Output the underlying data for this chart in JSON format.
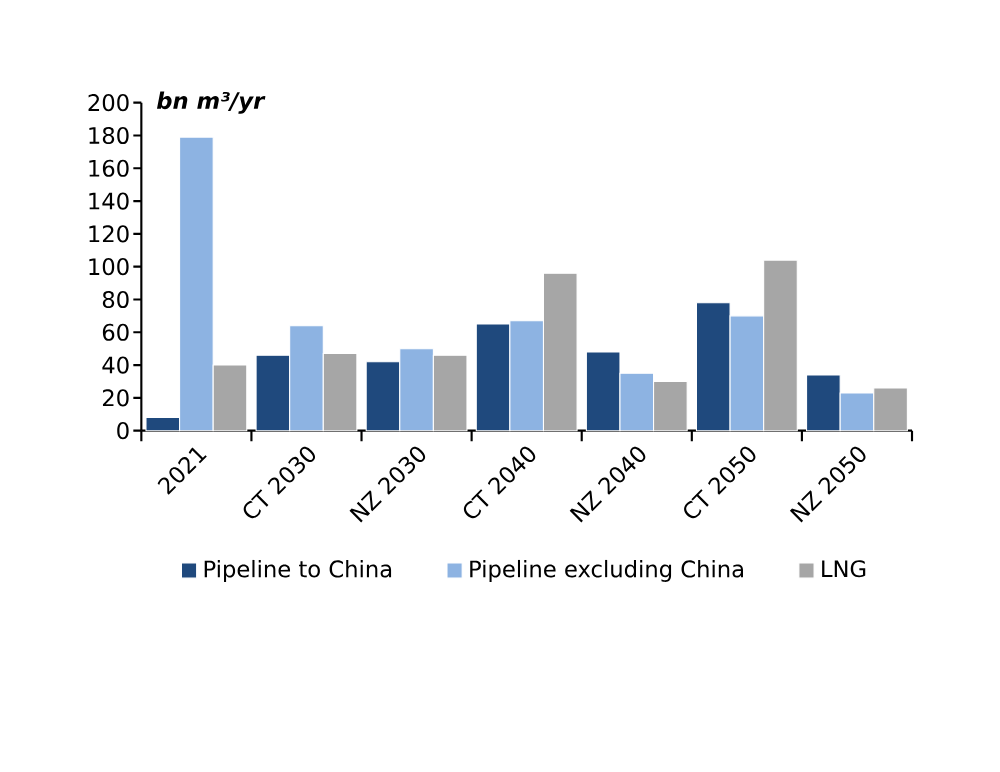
{
  "chart_data": {
    "type": "bar",
    "ylabel": "bn m³/yr",
    "categories": [
      "2021",
      "CT 2030",
      "NZ 2030",
      "CT 2040",
      "NZ 2040",
      "CT 2050",
      "NZ 2050"
    ],
    "series": [
      {
        "name": "Pipeline to China",
        "color": "#1f497d",
        "values": [
          8,
          46,
          42,
          65,
          48,
          78,
          34
        ]
      },
      {
        "name": "Pipeline excluding China",
        "color": "#8db3e2",
        "values": [
          179,
          64,
          50,
          67,
          35,
          70,
          23
        ]
      },
      {
        "name": "LNG",
        "color": "#a6a6a6",
        "values": [
          40,
          47,
          46,
          96,
          30,
          104,
          26
        ]
      }
    ],
    "ylim": [
      0,
      200
    ],
    "yticks": [
      0,
      20,
      40,
      60,
      80,
      100,
      120,
      140,
      160,
      180,
      200
    ],
    "grid": false,
    "legend": "bottom"
  }
}
